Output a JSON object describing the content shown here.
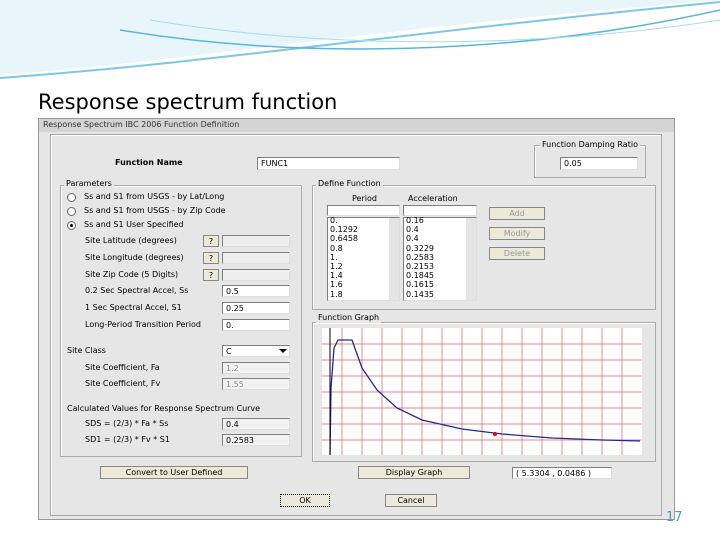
{
  "slide": {
    "title": "Response spectrum function",
    "page_number": "17"
  },
  "dialog": {
    "title": "Response Spectrum IBC 2006 Function Definition",
    "function_name": {
      "label": "Function Name",
      "value": "FUNC1"
    },
    "damping": {
      "label": "Function Damping Ratio",
      "value": "0.05"
    },
    "parameters": {
      "label": "Parameters",
      "options": [
        "Ss and S1 from USGS - by Lat/Long",
        "Ss and S1 from USGS - by Zip Code",
        "Ss and S1 User Specified"
      ],
      "selected": 2,
      "fields": [
        {
          "label": "Site Latitude (degrees)",
          "help": "?"
        },
        {
          "label": "Site Longitude (degrees)",
          "help": "?"
        },
        {
          "label": "Site Zip Code (5 Digits)",
          "help": "?"
        },
        {
          "label": "0.2 Sec Spectral Accel, Ss",
          "value": "0.5"
        },
        {
          "label": "1 Sec Spectral Accel, S1",
          "value": "0.25"
        },
        {
          "label": "Long-Period Transition Period",
          "value": "0."
        }
      ],
      "site_class": {
        "label": "Site Class",
        "value": "C"
      },
      "site_coefficients": [
        {
          "label": "Site Coefficient, Fa",
          "value": "1.2"
        },
        {
          "label": "Site Coefficient, Fv",
          "value": "1.55"
        }
      ],
      "calculated": {
        "label": "Calculated Values for Response Spectrum Curve",
        "rows": [
          {
            "label": "SDS = (2/3) * Fa * Ss",
            "value": "0.4"
          },
          {
            "label": "SD1 = (2/3) * Fv * S1",
            "value": "0.2583"
          }
        ]
      }
    },
    "define_function": {
      "label": "Define Function",
      "period_header": "Period",
      "acceleration_header": "Acceleration",
      "periods": [
        "0.",
        "0.1292",
        "0.6458",
        "0.8",
        "1.",
        "1.2",
        "1.4",
        "1.6",
        "1.8"
      ],
      "accelerations": [
        "0.16",
        "0.4",
        "0.4",
        "0.3229",
        "0.2583",
        "0.2153",
        "0.1845",
        "0.1615",
        "0.1435"
      ],
      "buttons": [
        "Add",
        "Modify",
        "Delete"
      ]
    },
    "graph": {
      "label": "Function Graph",
      "readout": "( 5.3304 , 0.0486 )"
    },
    "buttons": {
      "convert": "Convert to User Defined",
      "display": "Display Graph",
      "ok": "OK",
      "cancel": "Cancel"
    }
  }
}
